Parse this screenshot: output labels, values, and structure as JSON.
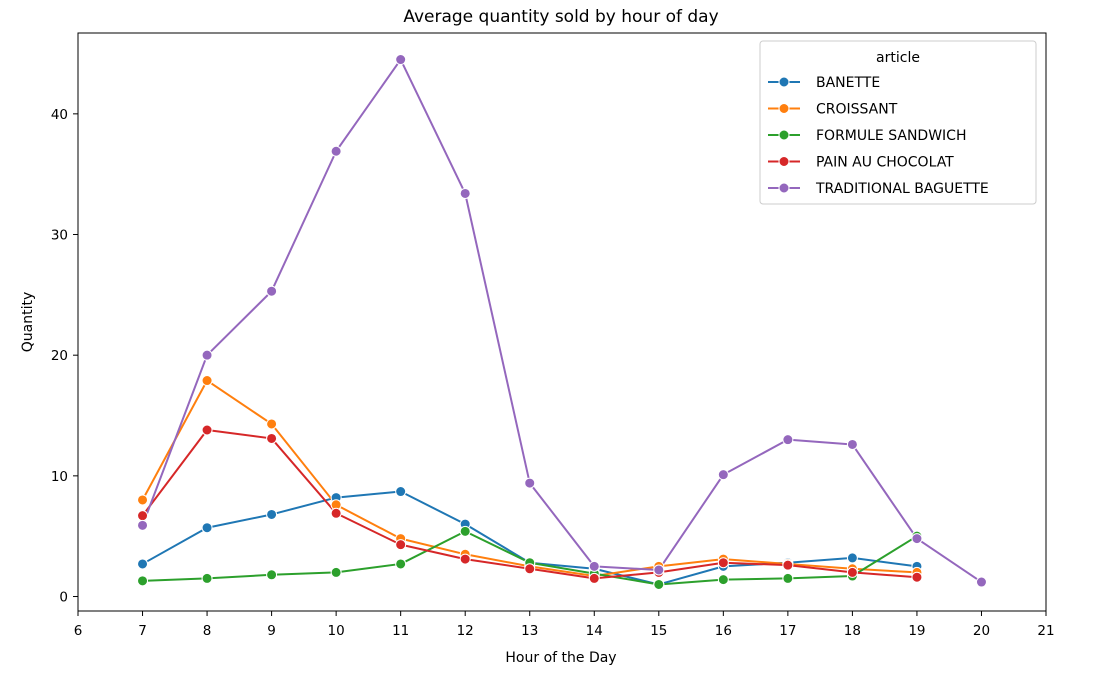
{
  "chart_data": {
    "type": "line",
    "title": "Average quantity sold by hour of day",
    "xlabel": "Hour of the Day",
    "ylabel": "Quantity",
    "xlim": [
      6,
      21
    ],
    "ylim": [
      -1.2,
      46.7
    ],
    "xticks": [
      6,
      7,
      8,
      9,
      10,
      11,
      12,
      13,
      14,
      15,
      16,
      17,
      18,
      19,
      20,
      21
    ],
    "yticks": [
      0,
      10,
      20,
      30,
      40
    ],
    "grid": false,
    "legend": {
      "title": "article",
      "placement": "top-right"
    },
    "series": [
      {
        "name": "BANETTE",
        "color": "#1f77b4",
        "x": [
          7,
          8,
          9,
          10,
          11,
          12,
          13,
          14,
          15,
          16,
          17,
          18,
          19
        ],
        "y": [
          2.7,
          5.7,
          6.8,
          8.2,
          8.7,
          6.0,
          2.8,
          2.3,
          1.0,
          2.5,
          2.8,
          3.2,
          2.5
        ]
      },
      {
        "name": "CROISSANT",
        "color": "#ff7f0e",
        "x": [
          7,
          8,
          9,
          10,
          11,
          12,
          13,
          14,
          15,
          16,
          17,
          18,
          19
        ],
        "y": [
          8.0,
          17.9,
          14.3,
          7.6,
          4.8,
          3.5,
          2.5,
          1.7,
          2.5,
          3.1,
          2.7,
          2.3,
          2.0
        ]
      },
      {
        "name": "FORMULE SANDWICH",
        "color": "#2ca02c",
        "x": [
          7,
          8,
          9,
          10,
          11,
          12,
          13,
          14,
          15,
          16,
          17,
          18,
          19
        ],
        "y": [
          1.3,
          1.5,
          1.8,
          2.0,
          2.7,
          5.4,
          2.8,
          1.9,
          1.0,
          1.4,
          1.5,
          1.7,
          5.0
        ]
      },
      {
        "name": "PAIN AU CHOCOLAT",
        "color": "#d62728",
        "x": [
          7,
          8,
          9,
          10,
          11,
          12,
          13,
          14,
          15,
          16,
          17,
          18,
          19
        ],
        "y": [
          6.7,
          13.8,
          13.1,
          6.9,
          4.3,
          3.1,
          2.3,
          1.5,
          2.0,
          2.8,
          2.6,
          2.0,
          1.6
        ]
      },
      {
        "name": "TRADITIONAL BAGUETTE",
        "color": "#9467bd",
        "x": [
          7,
          8,
          9,
          10,
          11,
          12,
          13,
          14,
          15,
          16,
          17,
          18,
          19,
          20
        ],
        "y": [
          5.9,
          20.0,
          25.3,
          36.9,
          44.5,
          33.4,
          9.4,
          2.5,
          2.2,
          10.1,
          13.0,
          12.6,
          4.8,
          1.2
        ]
      }
    ]
  }
}
